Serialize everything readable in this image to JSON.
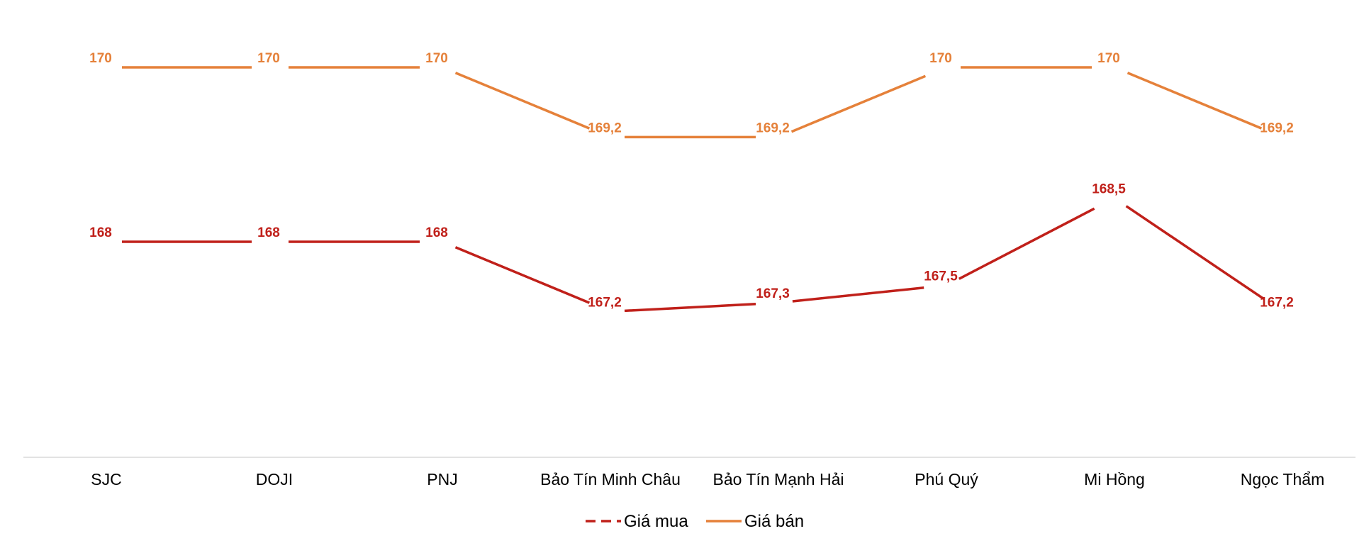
{
  "chart_data": {
    "type": "line",
    "title": "",
    "xlabel": "",
    "ylabel": "",
    "categories": [
      "SJC",
      "DOJI",
      "PNJ",
      "Bảo Tín Minh Châu",
      "Bảo Tín Mạnh Hải",
      "Phú Quý",
      "Mi Hồng",
      "Ngọc Thẩm"
    ],
    "series": [
      {
        "name": "Giá mua",
        "color": "#C0201A",
        "values": [
          168,
          168,
          168,
          167.2,
          167.3,
          167.5,
          168.5,
          167.2
        ],
        "labels": [
          "168",
          "168",
          "168",
          "167,2",
          "167,3",
          "167,5",
          "168,5",
          "167,2"
        ]
      },
      {
        "name": "Giá bán",
        "color": "#E5813A",
        "values": [
          170,
          170,
          170,
          169.2,
          169.2,
          170,
          170,
          169.2
        ],
        "labels": [
          "170",
          "170",
          "170",
          "169,2",
          "169,2",
          "170",
          "170",
          "169,2"
        ]
      }
    ],
    "grid": false,
    "axis_color": "#D9D9D9",
    "legend_position": "bottom"
  }
}
